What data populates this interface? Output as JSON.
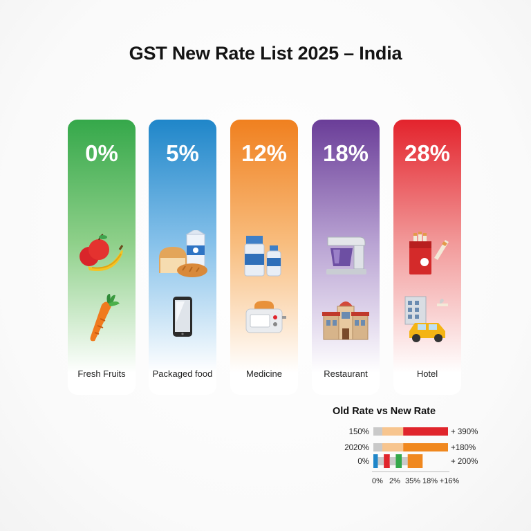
{
  "title": "GST New Rate List 2025 – India",
  "slabs": [
    {
      "rate": "0%",
      "label": "Fresh Fruits",
      "icons": [
        "fruits-icon",
        "carrot-icon"
      ],
      "color_top": "#35a84a",
      "color_mid": "#8fd08a"
    },
    {
      "rate": "5%",
      "label": "Packaged food",
      "icons": [
        "bread-milk-icon",
        "smartphone-icon"
      ],
      "color_top": "#1f86c9",
      "color_mid": "#86c1ea"
    },
    {
      "rate": "12%",
      "label": "Medicine",
      "icons": [
        "milk-bottles-icon",
        "toaster-icon"
      ],
      "color_top": "#f0801f",
      "color_mid": "#f8bd7e"
    },
    {
      "rate": "18%",
      "label": "Restaurant",
      "icons": [
        "stand-mixer-icon",
        "building-icon"
      ],
      "color_top": "#6a3d98",
      "color_mid": "#b9a3d3"
    },
    {
      "rate": "28%",
      "label": "Hotel",
      "icons": [
        "cigarette-pack-icon",
        "hotel-taxi-icon"
      ],
      "color_top": "#e3232c",
      "color_mid": "#f29a9a"
    }
  ],
  "chart_data": {
    "type": "bar",
    "title": "Old Rate vs New Rate",
    "row_labels": [
      "150%",
      "2020%",
      "0%"
    ],
    "right_labels": [
      "+ 390%",
      "+180%",
      "+ 200%"
    ],
    "x_tick_labels": [
      "0%",
      "2%",
      "35%",
      "18%",
      "+16%"
    ],
    "rows": [
      {
        "segments": [
          {
            "color": "#c9c9c9",
            "value": 6
          },
          {
            "color": "#f7c58f",
            "value": 14
          },
          {
            "color": "#e0252c",
            "value": 30
          }
        ]
      },
      {
        "segments": [
          {
            "color": "#c9c9c9",
            "value": 6
          },
          {
            "color": "#f7c58f",
            "value": 14
          },
          {
            "color": "#f0881f",
            "value": 30
          }
        ]
      },
      {
        "segments": [
          {
            "color": "#1f86c9",
            "value": 3
          },
          {
            "color": "#c9c9c9",
            "value": 4
          },
          {
            "color": "#e0252c",
            "value": 4
          },
          {
            "color": "#c9c9c9",
            "value": 4
          },
          {
            "color": "#35a84a",
            "value": 4
          },
          {
            "color": "#c9c9c9",
            "value": 4
          },
          {
            "color": "#f0881f",
            "value": 10
          }
        ]
      }
    ],
    "max": 50
  }
}
